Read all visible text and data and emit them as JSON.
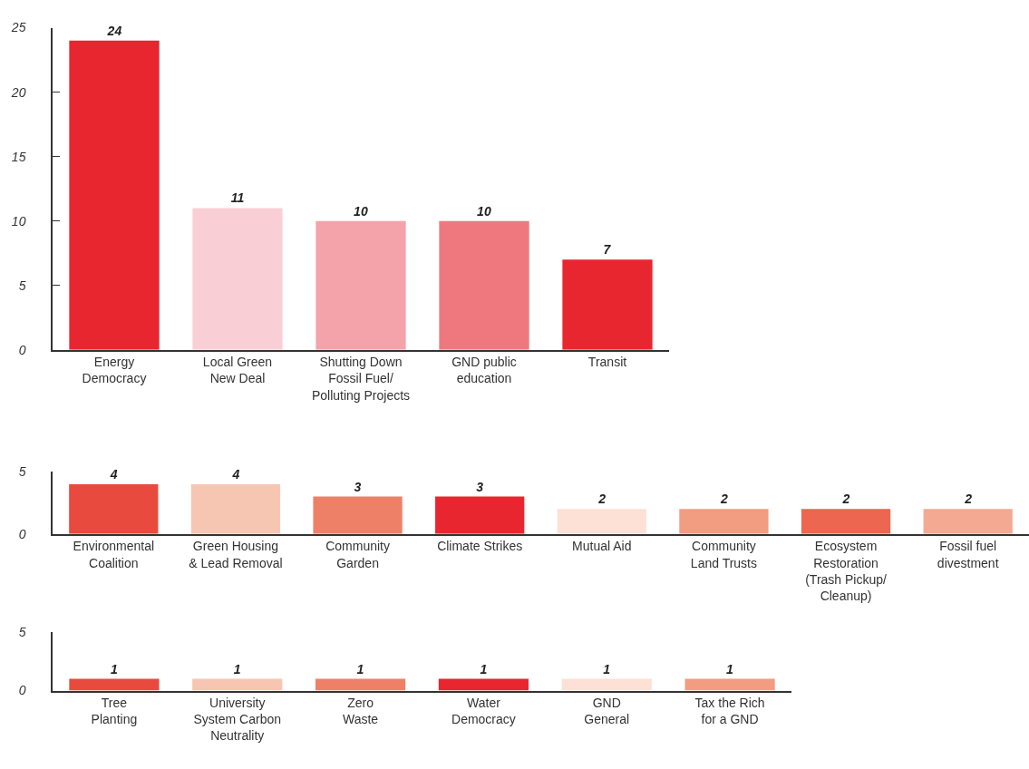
{
  "chart_data": [
    {
      "type": "bar",
      "categories": [
        "Energy\nDemocracy",
        "Local Green\nNew Deal",
        "Shutting Down\nFossil Fuel/\nPolluting Projects",
        "GND public\neducation",
        "Transit"
      ],
      "values": [
        24,
        11,
        10,
        10,
        7
      ],
      "colors": [
        "#e8262f",
        "#f9cfd5",
        "#f5a3aa",
        "#ef787f",
        "#e8262f"
      ],
      "ylim": [
        0,
        25
      ],
      "yticks": [
        0,
        5,
        10,
        15,
        20,
        25
      ],
      "data_labels": true
    },
    {
      "type": "bar",
      "categories": [
        "Environmental\nCoalition",
        "Green Housing\n& Lead Removal",
        "Community\nGarden",
        "Climate Strikes",
        "Mutual Aid",
        "Community\nLand Trusts",
        "Ecosystem\nRestoration\n(Trash Pickup/\nCleanup)",
        "Fossil fuel\ndivestment"
      ],
      "values": [
        4,
        4,
        3,
        3,
        2,
        2,
        2,
        2
      ],
      "colors": [
        "#e84b3d",
        "#f7c6b3",
        "#ef8068",
        "#e8262f",
        "#fde0d6",
        "#f29c82",
        "#ec6650",
        "#f4a993"
      ],
      "ylim": [
        0,
        5
      ],
      "yticks": [
        0,
        5
      ],
      "data_labels": true
    },
    {
      "type": "bar",
      "categories": [
        "Tree\nPlanting",
        "University\nSystem Carbon\nNeutrality",
        "Zero\nWaste",
        "Water\nDemocracy",
        "GND\nGeneral",
        "Tax the Rich\nfor a GND"
      ],
      "values": [
        1,
        1,
        1,
        1,
        1,
        1
      ],
      "colors": [
        "#e84b3d",
        "#f7c6b3",
        "#ef8068",
        "#e8262f",
        "#fde0d6",
        "#f29c82"
      ],
      "ylim": [
        0,
        5
      ],
      "yticks": [
        0,
        5
      ],
      "data_labels": true
    }
  ]
}
